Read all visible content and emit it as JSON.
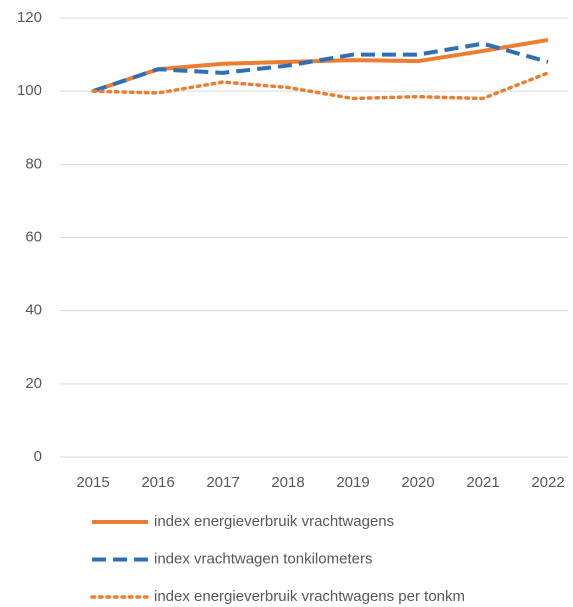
{
  "chart_data": {
    "type": "line",
    "categories": [
      "2015",
      "2016",
      "2017",
      "2018",
      "2019",
      "2020",
      "2021",
      "2022"
    ],
    "series": [
      {
        "name": "index energieverbruik vrachtwagens",
        "color": "#ed7d31",
        "style": "solid",
        "values": [
          100,
          106,
          107.5,
          108,
          108.5,
          108.2,
          111,
          114
        ]
      },
      {
        "name": "index vrachtwagen tonkilometers",
        "color": "#2e6fb7",
        "style": "dash",
        "values": [
          100,
          106,
          105,
          107,
          110,
          110,
          113,
          108
        ]
      },
      {
        "name": "index energieverbruik vrachtwagens per tonkm",
        "color": "#ed7d31",
        "style": "dot",
        "values": [
          100,
          99.5,
          102.5,
          101,
          98,
          98.5,
          98,
          105
        ]
      }
    ],
    "ylim": [
      0,
      120
    ],
    "yticks": [
      0,
      20,
      40,
      60,
      80,
      100,
      120
    ],
    "grid": true,
    "legend": "bottom"
  }
}
